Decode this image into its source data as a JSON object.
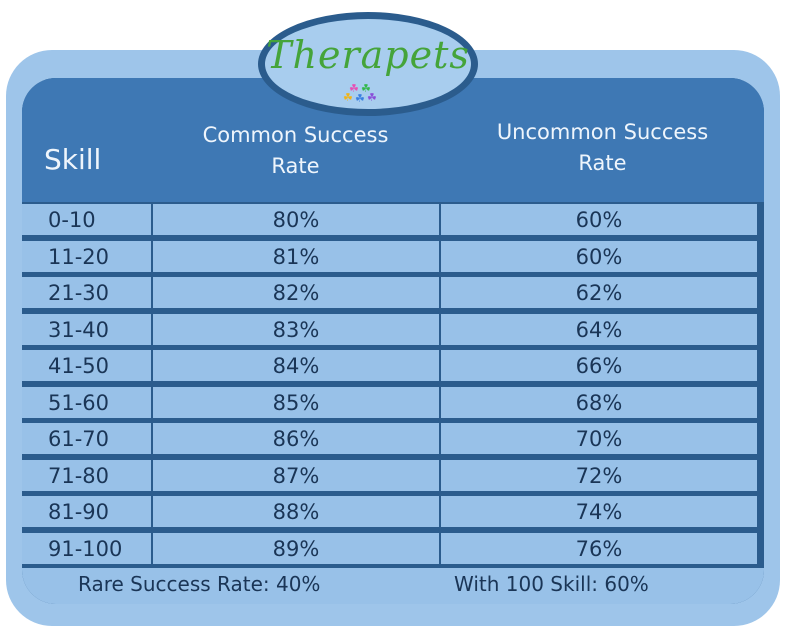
{
  "brand": {
    "logo_text": "Therapets",
    "paw_colors": [
      "#e64fb4",
      "#34b84c",
      "#f0b419",
      "#3a7fe0",
      "#8a4fd8"
    ]
  },
  "header": {
    "skill": "Skill",
    "common": [
      "Common Success",
      "Rate"
    ],
    "uncommon": [
      "Uncommon Success",
      "Rate"
    ]
  },
  "rows": [
    {
      "skill": "0-10",
      "common": "80%",
      "uncommon": "60%"
    },
    {
      "skill": "11-20",
      "common": "81%",
      "uncommon": "60%"
    },
    {
      "skill": "21-30",
      "common": "82%",
      "uncommon": "62%"
    },
    {
      "skill": "31-40",
      "common": "83%",
      "uncommon": "64%"
    },
    {
      "skill": "41-50",
      "common": "84%",
      "uncommon": "66%"
    },
    {
      "skill": "51-60",
      "common": "85%",
      "uncommon": "68%"
    },
    {
      "skill": "61-70",
      "common": "86%",
      "uncommon": "70%"
    },
    {
      "skill": "71-80",
      "common": "87%",
      "uncommon": "72%"
    },
    {
      "skill": "81-90",
      "common": "88%",
      "uncommon": "74%"
    },
    {
      "skill": "91-100",
      "common": "89%",
      "uncommon": "76%"
    }
  ],
  "footer": {
    "rare": "Rare Success Rate: 40%",
    "max": "With 100 Skill: 60%"
  },
  "colors": {
    "outer_frame": "#9ec5ea",
    "grid": "#2b5c8d",
    "header": "#3e78b4",
    "cell": "#98c1e8",
    "logo_green": "#45a43a"
  }
}
